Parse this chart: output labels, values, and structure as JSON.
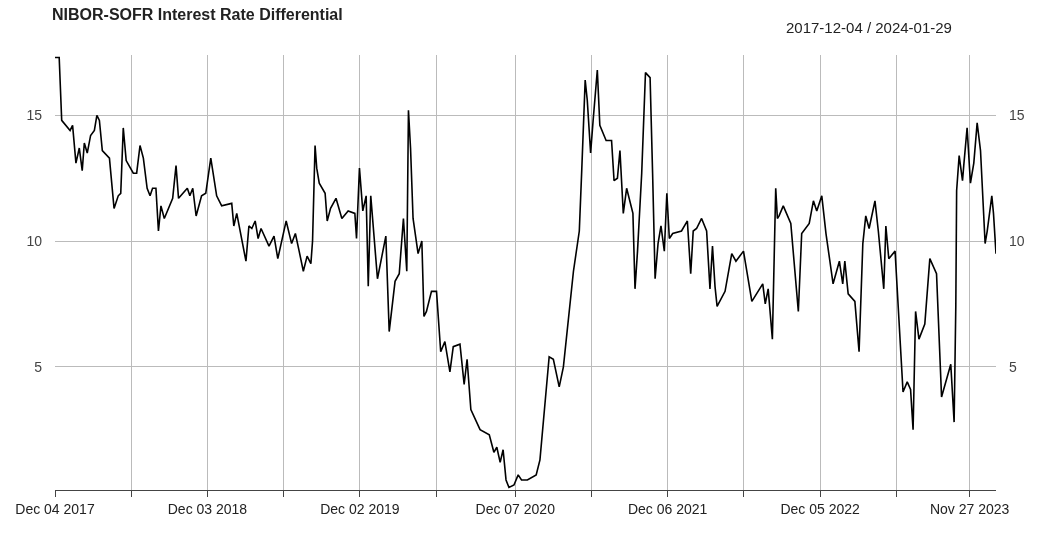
{
  "chart_data": {
    "type": "line",
    "title": "NIBOR-SOFR Interest Rate Differential",
    "annotations": [
      "2017-12-04 / 2024-01-29"
    ],
    "x": [
      "2017-12-04",
      "2017-12-14",
      "2017-12-20",
      "2018-01-09",
      "2018-01-15",
      "2018-01-23",
      "2018-01-31",
      "2018-02-07",
      "2018-02-12",
      "2018-02-19",
      "2018-02-27",
      "2018-03-08",
      "2018-03-14",
      "2018-03-20",
      "2018-03-27",
      "2018-04-13",
      "2018-04-24",
      "2018-05-04",
      "2018-05-10",
      "2018-05-16",
      "2018-05-23",
      "2018-06-09",
      "2018-06-17",
      "2018-06-25",
      "2018-07-03",
      "2018-07-12",
      "2018-07-19",
      "2018-07-25",
      "2018-08-02",
      "2018-08-08",
      "2018-08-14",
      "2018-08-22",
      "2018-09-11",
      "2018-09-19",
      "2018-09-25",
      "2018-10-16",
      "2018-10-22",
      "2018-10-29",
      "2018-11-06",
      "2018-11-19",
      "2018-11-29",
      "2018-12-11",
      "2018-12-25",
      "2019-01-06",
      "2019-01-30",
      "2019-02-04",
      "2019-02-11",
      "2019-03-05",
      "2019-03-12",
      "2019-03-19",
      "2019-03-27",
      "2019-04-03",
      "2019-04-10",
      "2019-04-29",
      "2019-05-11",
      "2019-05-20",
      "2019-06-09",
      "2019-06-22",
      "2019-07-01",
      "2019-07-10",
      "2019-07-20",
      "2019-07-29",
      "2019-08-07",
      "2019-08-11",
      "2019-08-17",
      "2019-08-21",
      "2019-08-27",
      "2019-09-10",
      "2019-09-15",
      "2019-09-23",
      "2019-10-06",
      "2019-10-20",
      "2019-11-04",
      "2019-11-20",
      "2019-11-24",
      "2019-12-01",
      "2019-12-09",
      "2019-12-17",
      "2019-12-22",
      "2019-12-28",
      "2020-01-13",
      "2020-02-02",
      "2020-02-10",
      "2020-02-24",
      "2020-03-05",
      "2020-03-15",
      "2020-03-23",
      "2020-03-27",
      "2020-04-01",
      "2020-04-07",
      "2020-04-19",
      "2020-04-28",
      "2020-05-03",
      "2020-05-09",
      "2020-05-21",
      "2020-06-02",
      "2020-06-12",
      "2020-06-22",
      "2020-07-04",
      "2020-07-12",
      "2020-07-28",
      "2020-08-07",
      "2020-08-14",
      "2020-08-23",
      "2020-09-14",
      "2020-10-06",
      "2020-10-17",
      "2020-10-24",
      "2020-11-01",
      "2020-11-08",
      "2020-11-15",
      "2020-11-22",
      "2020-12-04",
      "2020-12-14",
      "2020-12-22",
      "2021-01-05",
      "2021-01-26",
      "2021-02-04",
      "2021-02-26",
      "2021-03-08",
      "2021-03-22",
      "2021-04-01",
      "2021-04-25",
      "2021-05-09",
      "2021-05-15",
      "2021-05-23",
      "2021-05-28",
      "2021-06-05",
      "2021-06-11",
      "2021-06-21",
      "2021-06-27",
      "2021-07-12",
      "2021-07-25",
      "2021-07-31",
      "2021-08-08",
      "2021-08-14",
      "2021-08-22",
      "2021-08-30",
      "2021-09-14",
      "2021-09-19",
      "2021-09-25",
      "2021-10-05",
      "2021-10-14",
      "2021-10-25",
      "2021-10-31",
      "2021-11-06",
      "2021-11-13",
      "2021-11-20",
      "2021-11-28",
      "2021-12-04",
      "2021-12-10",
      "2021-12-18",
      "2022-01-08",
      "2022-01-22",
      "2022-01-30",
      "2022-02-05",
      "2022-02-13",
      "2022-02-25",
      "2022-03-09",
      "2022-03-17",
      "2022-03-23",
      "2022-03-29",
      "2022-04-03",
      "2022-04-22",
      "2022-05-08",
      "2022-05-18",
      "2022-06-05",
      "2022-06-25",
      "2022-07-21",
      "2022-07-27",
      "2022-08-03",
      "2022-08-13",
      "2022-08-21",
      "2022-08-25",
      "2022-08-29",
      "2022-09-08",
      "2022-09-26",
      "2022-10-14",
      "2022-10-22",
      "2022-11-09",
      "2022-11-19",
      "2022-11-27",
      "2022-12-09",
      "2022-12-19",
      "2023-01-05",
      "2023-01-20",
      "2023-01-28",
      "2023-02-02",
      "2023-02-10",
      "2023-02-26",
      "2023-03-08",
      "2023-03-17",
      "2023-03-24",
      "2023-04-01",
      "2023-04-15",
      "2023-04-23",
      "2023-05-06",
      "2023-05-11",
      "2023-05-18",
      "2023-06-02",
      "2023-06-21",
      "2023-07-01",
      "2023-07-09",
      "2023-07-15",
      "2023-07-21",
      "2023-07-29",
      "2023-08-12",
      "2023-08-24",
      "2023-09-09",
      "2023-09-21",
      "2023-10-13",
      "2023-10-21",
      "2023-10-25",
      "2023-10-27",
      "2023-11-02",
      "2023-11-10",
      "2023-11-13",
      "2023-11-21",
      "2023-11-29",
      "2023-12-07",
      "2023-12-15",
      "2023-12-23",
      "2024-01-03",
      "2024-01-08",
      "2024-01-19",
      "2024-01-23",
      "2024-01-29"
    ],
    "series": [
      {
        "color": "#000000",
        "values": [
          17.3,
          17.3,
          14.8,
          14.4,
          14.6,
          13.1,
          13.7,
          12.8,
          13.9,
          13.5,
          14.2,
          14.4,
          15.0,
          14.8,
          13.6,
          13.3,
          11.3,
          11.8,
          11.9,
          14.5,
          13.2,
          12.7,
          12.7,
          13.8,
          13.3,
          12.1,
          11.8,
          12.1,
          12.1,
          10.4,
          11.4,
          10.9,
          11.7,
          13.0,
          11.7,
          12.1,
          11.8,
          12.1,
          11.0,
          11.8,
          11.9,
          13.3,
          11.8,
          11.4,
          11.5,
          10.6,
          11.1,
          9.2,
          10.6,
          10.5,
          10.8,
          10.1,
          10.5,
          9.8,
          10.2,
          9.3,
          10.8,
          9.9,
          10.3,
          9.6,
          8.8,
          9.4,
          9.1,
          10.0,
          13.8,
          12.9,
          12.3,
          11.9,
          10.8,
          11.3,
          11.7,
          10.9,
          11.2,
          11.1,
          10.1,
          12.9,
          11.2,
          11.8,
          8.2,
          11.8,
          8.5,
          10.2,
          6.4,
          8.4,
          8.7,
          10.9,
          8.8,
          15.2,
          13.7,
          10.9,
          9.5,
          10.0,
          7.0,
          7.2,
          8.0,
          8.0,
          5.6,
          6.0,
          4.8,
          5.8,
          5.9,
          4.3,
          5.3,
          3.3,
          2.5,
          2.3,
          1.6,
          1.8,
          1.2,
          1.7,
          0.5,
          0.2,
          0.3,
          0.7,
          0.5,
          0.5,
          0.7,
          1.3,
          5.4,
          5.3,
          4.2,
          5.0,
          8.8,
          10.4,
          12.9,
          16.4,
          15.6,
          13.5,
          14.8,
          16.8,
          14.6,
          14.0,
          14.0,
          12.4,
          12.5,
          13.6,
          11.1,
          12.1,
          11.1,
          8.1,
          9.6,
          12.7,
          16.7,
          16.5,
          12.7,
          8.5,
          9.9,
          10.6,
          9.6,
          11.9,
          10.1,
          10.3,
          10.4,
          10.8,
          8.7,
          10.4,
          10.5,
          10.9,
          10.4,
          8.1,
          9.8,
          8.2,
          7.4,
          8.0,
          9.5,
          9.2,
          9.6,
          7.6,
          8.3,
          7.5,
          8.1,
          6.1,
          12.1,
          10.9,
          11.0,
          11.4,
          10.7,
          7.2,
          10.3,
          10.7,
          11.6,
          11.2,
          11.8,
          10.3,
          8.3,
          9.2,
          8.3,
          9.2,
          7.9,
          7.6,
          5.6,
          9.9,
          11.0,
          10.5,
          11.6,
          10.4,
          8.1,
          10.6,
          9.3,
          9.6,
          4.0,
          4.4,
          4.1,
          2.5,
          7.2,
          6.1,
          6.7,
          9.3,
          8.7,
          3.8,
          5.1,
          2.8,
          7.4,
          12.0,
          13.4,
          12.4,
          13.0,
          14.5,
          12.3,
          13.1,
          14.7,
          13.6,
          9.9,
          10.4,
          11.8,
          11.1,
          9.5
        ]
      }
    ],
    "xlim": [
      "2017-12-04",
      "2024-01-29"
    ],
    "xticks": [
      {
        "value": "2017-12-04",
        "label": "Dec 04 2017"
      },
      {
        "value": "2018-06-04",
        "label": null
      },
      {
        "value": "2018-12-03",
        "label": "Dec 03 2018"
      },
      {
        "value": "2019-06-03",
        "label": null
      },
      {
        "value": "2019-12-02",
        "label": "Dec 02 2019"
      },
      {
        "value": "2020-06-01",
        "label": null
      },
      {
        "value": "2020-12-07",
        "label": "Dec 07 2020"
      },
      {
        "value": "2021-06-07",
        "label": null
      },
      {
        "value": "2021-12-06",
        "label": "Dec 06 2021"
      },
      {
        "value": "2022-06-06",
        "label": null
      },
      {
        "value": "2022-12-05",
        "label": "Dec 05 2022"
      },
      {
        "value": "2023-06-05",
        "label": null
      },
      {
        "value": "2023-11-27",
        "label": "Nov 27 2023"
      }
    ],
    "ylim": [
      0.1,
      17.4
    ],
    "yticks": [
      5,
      10,
      15
    ],
    "y2lim": [
      0.1,
      17.4
    ],
    "y2ticks": [
      5,
      10,
      15
    ],
    "grid": true
  }
}
